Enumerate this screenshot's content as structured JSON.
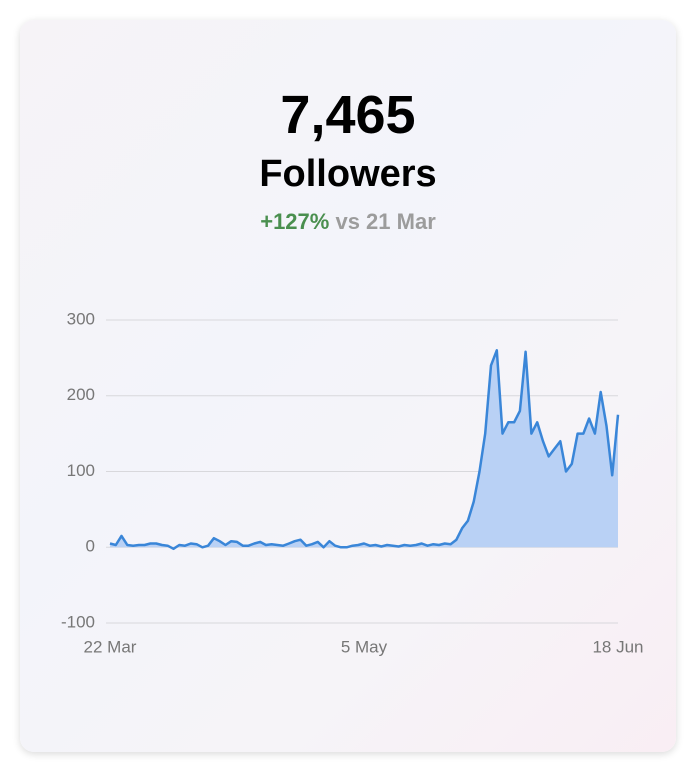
{
  "header": {
    "value": "7,465",
    "label": "Followers",
    "change": "+127%",
    "comparison": "vs 21 Mar"
  },
  "chart_data": {
    "type": "area",
    "categories": [
      "22 Mar",
      null,
      null,
      null,
      null,
      null,
      null,
      null,
      null,
      null,
      null,
      null,
      null,
      null,
      null,
      null,
      null,
      null,
      null,
      null,
      null,
      null,
      null,
      null,
      null,
      null,
      null,
      null,
      null,
      null,
      null,
      null,
      null,
      null,
      null,
      null,
      null,
      null,
      null,
      null,
      null,
      null,
      null,
      null,
      "5 May",
      null,
      null,
      null,
      null,
      null,
      null,
      null,
      null,
      null,
      null,
      null,
      null,
      null,
      null,
      null,
      null,
      null,
      null,
      null,
      null,
      null,
      null,
      null,
      null,
      null,
      null,
      null,
      null,
      null,
      null,
      null,
      null,
      null,
      null,
      null,
      null,
      null,
      null,
      null,
      null,
      null,
      null,
      null,
      "18 Jun"
    ],
    "series": [
      {
        "color": "#3a86d8",
        "fill": "#b9d1f5",
        "values": [
          5,
          3,
          15,
          3,
          2,
          3,
          3,
          5,
          5,
          3,
          2,
          -2,
          3,
          2,
          5,
          4,
          0,
          2,
          12,
          8,
          3,
          8,
          7,
          2,
          2,
          5,
          7,
          3,
          4,
          3,
          2,
          5,
          8,
          10,
          2,
          4,
          7,
          0,
          8,
          2,
          0,
          0,
          2,
          3,
          5,
          2,
          3,
          1,
          3,
          2,
          1,
          3,
          2,
          3,
          5,
          2,
          4,
          3,
          5,
          4,
          10,
          25,
          35,
          60,
          100,
          150,
          240,
          260,
          150,
          165,
          165,
          180,
          258,
          150,
          165,
          140,
          120,
          130,
          140,
          100,
          110,
          150,
          150,
          170,
          150,
          205,
          160,
          95,
          175
        ]
      }
    ],
    "ylim": [
      -100,
      300
    ],
    "yticks": [
      -100,
      0,
      100,
      200,
      300
    ],
    "grid": true
  }
}
